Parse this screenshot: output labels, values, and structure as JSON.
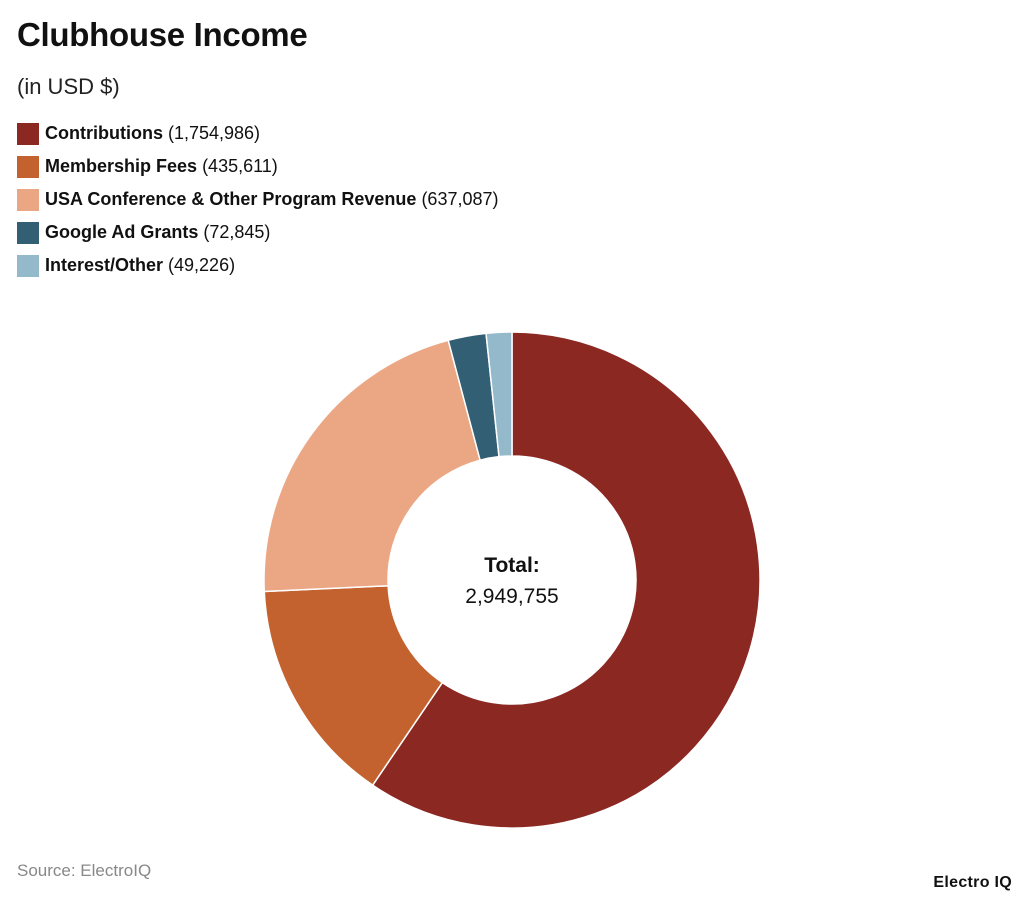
{
  "header": {
    "title": "Clubhouse Income",
    "subtitle": "(in USD $)"
  },
  "chart_data": {
    "type": "pie",
    "donut": true,
    "title": "Clubhouse Income",
    "subtitle": "(in USD $)",
    "legend_position": "top-left",
    "center_label": "Total:",
    "center_value": "2,949,755",
    "slices": [
      {
        "name": "Contributions",
        "value": 1754986,
        "label": "(1,754,986)",
        "color": "#8B2822"
      },
      {
        "name": "Membership Fees",
        "value": 435611,
        "label": "(435,611)",
        "color": "#C3622E"
      },
      {
        "name": "USA Conference & Other Program Revenue",
        "value": 637087,
        "label": "(637,087)",
        "color": "#EBA784"
      },
      {
        "name": "Google Ad Grants",
        "value": 72845,
        "label": "(72,845)",
        "color": "#325F74"
      },
      {
        "name": "Interest/Other",
        "value": 49226,
        "label": "(49,226)",
        "color": "#93B9CA"
      }
    ]
  },
  "footer": {
    "source": "Source: ElectroIQ",
    "brand": "Electro IQ"
  }
}
